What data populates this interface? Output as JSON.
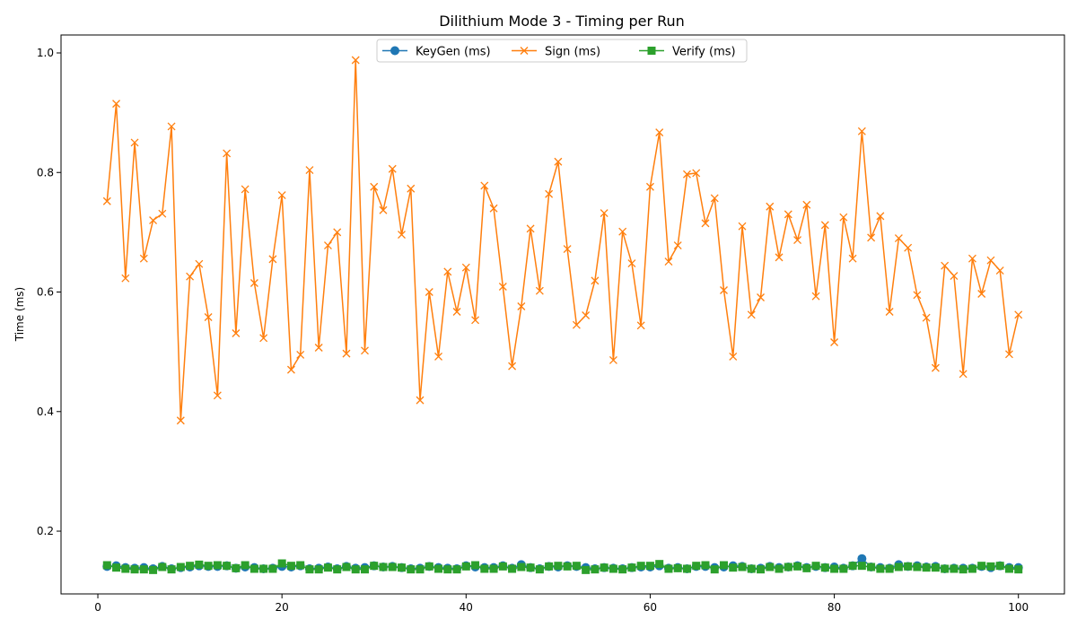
{
  "chart_data": {
    "type": "line",
    "title": "Dilithium Mode 3 - Timing per Run",
    "xlabel": "",
    "ylabel": "Time (ms)",
    "xlim": [
      -4,
      105
    ],
    "ylim": [
      0.095,
      1.03
    ],
    "xticks": [
      0,
      20,
      40,
      60,
      80,
      100
    ],
    "yticks": [
      0.2,
      0.4,
      0.6,
      0.8,
      1.0
    ],
    "xtick_labels": [
      "0",
      "20",
      "40",
      "60",
      "80",
      "100"
    ],
    "ytick_labels": [
      "0.2",
      "0.4",
      "0.6",
      "0.8",
      "1.0"
    ],
    "grid": false,
    "legend_position": "top-center",
    "x": [
      1,
      2,
      3,
      4,
      5,
      6,
      7,
      8,
      9,
      10,
      11,
      12,
      13,
      14,
      15,
      16,
      17,
      18,
      19,
      20,
      21,
      22,
      23,
      24,
      25,
      26,
      27,
      28,
      29,
      30,
      31,
      32,
      33,
      34,
      35,
      36,
      37,
      38,
      39,
      40,
      41,
      42,
      43,
      44,
      45,
      46,
      47,
      48,
      49,
      50,
      51,
      52,
      53,
      54,
      55,
      56,
      57,
      58,
      59,
      60,
      61,
      62,
      63,
      64,
      65,
      66,
      67,
      68,
      69,
      70,
      71,
      72,
      73,
      74,
      75,
      76,
      77,
      78,
      79,
      80,
      81,
      82,
      83,
      84,
      85,
      86,
      87,
      88,
      89,
      90,
      91,
      92,
      93,
      94,
      95,
      96,
      97,
      98,
      99,
      100
    ],
    "series": [
      {
        "name": "KeyGen (ms)",
        "color": "#1f77b4",
        "marker": "circle",
        "values": [
          0.141,
          0.142,
          0.139,
          0.138,
          0.139,
          0.137,
          0.141,
          0.137,
          0.139,
          0.14,
          0.142,
          0.141,
          0.141,
          0.142,
          0.138,
          0.14,
          0.139,
          0.137,
          0.138,
          0.141,
          0.14,
          0.142,
          0.137,
          0.138,
          0.14,
          0.137,
          0.141,
          0.138,
          0.139,
          0.142,
          0.14,
          0.141,
          0.139,
          0.137,
          0.138,
          0.141,
          0.139,
          0.138,
          0.137,
          0.142,
          0.14,
          0.139,
          0.139,
          0.142,
          0.138,
          0.144,
          0.139,
          0.137,
          0.141,
          0.14,
          0.142,
          0.141,
          0.139,
          0.137,
          0.139,
          0.138,
          0.137,
          0.139,
          0.14,
          0.14,
          0.142,
          0.138,
          0.139,
          0.137,
          0.141,
          0.141,
          0.139,
          0.14,
          0.142,
          0.141,
          0.137,
          0.138,
          0.141,
          0.139,
          0.14,
          0.142,
          0.139,
          0.141,
          0.139,
          0.14,
          0.138,
          0.142,
          0.154,
          0.14,
          0.139,
          0.138,
          0.144,
          0.141,
          0.142,
          0.14,
          0.141,
          0.137,
          0.138,
          0.138,
          0.138,
          0.141,
          0.139,
          0.142,
          0.139,
          0.139
        ]
      },
      {
        "name": "Sign (ms)",
        "color": "#ff7f0e",
        "marker": "x",
        "values": [
          0.752,
          0.915,
          0.623,
          0.85,
          0.656,
          0.72,
          0.731,
          0.877,
          0.385,
          0.626,
          0.647,
          0.558,
          0.427,
          0.832,
          0.531,
          0.772,
          0.615,
          0.523,
          0.655,
          0.762,
          0.47,
          0.495,
          0.804,
          0.507,
          0.678,
          0.7,
          0.497,
          0.988,
          0.502,
          0.776,
          0.737,
          0.806,
          0.696,
          0.773,
          0.419,
          0.6,
          0.492,
          0.634,
          0.567,
          0.641,
          0.553,
          0.778,
          0.74,
          0.609,
          0.476,
          0.576,
          0.706,
          0.602,
          0.764,
          0.818,
          0.672,
          0.545,
          0.561,
          0.619,
          0.732,
          0.486,
          0.701,
          0.648,
          0.544,
          0.776,
          0.867,
          0.651,
          0.678,
          0.797,
          0.799,
          0.715,
          0.757,
          0.603,
          0.492,
          0.71,
          0.562,
          0.591,
          0.743,
          0.658,
          0.73,
          0.687,
          0.746,
          0.593,
          0.712,
          0.516,
          0.725,
          0.656,
          0.869,
          0.691,
          0.727,
          0.567,
          0.69,
          0.674,
          0.595,
          0.557,
          0.473,
          0.644,
          0.627,
          0.463,
          0.656,
          0.597,
          0.653,
          0.636,
          0.496,
          0.562
        ]
      },
      {
        "name": "Verify (ms)",
        "color": "#2ca02c",
        "marker": "square",
        "values": [
          0.143,
          0.139,
          0.137,
          0.136,
          0.136,
          0.135,
          0.14,
          0.136,
          0.14,
          0.142,
          0.144,
          0.142,
          0.143,
          0.142,
          0.138,
          0.143,
          0.137,
          0.137,
          0.137,
          0.146,
          0.142,
          0.143,
          0.136,
          0.136,
          0.139,
          0.136,
          0.14,
          0.136,
          0.136,
          0.142,
          0.14,
          0.14,
          0.139,
          0.136,
          0.136,
          0.141,
          0.137,
          0.136,
          0.136,
          0.141,
          0.143,
          0.137,
          0.137,
          0.141,
          0.137,
          0.14,
          0.139,
          0.136,
          0.141,
          0.142,
          0.141,
          0.142,
          0.135,
          0.136,
          0.139,
          0.137,
          0.136,
          0.139,
          0.142,
          0.142,
          0.145,
          0.137,
          0.138,
          0.137,
          0.142,
          0.143,
          0.136,
          0.143,
          0.139,
          0.14,
          0.137,
          0.136,
          0.14,
          0.137,
          0.14,
          0.141,
          0.138,
          0.142,
          0.139,
          0.137,
          0.137,
          0.142,
          0.142,
          0.14,
          0.137,
          0.137,
          0.14,
          0.141,
          0.14,
          0.139,
          0.139,
          0.137,
          0.137,
          0.136,
          0.137,
          0.142,
          0.141,
          0.142,
          0.137,
          0.136
        ]
      }
    ]
  }
}
